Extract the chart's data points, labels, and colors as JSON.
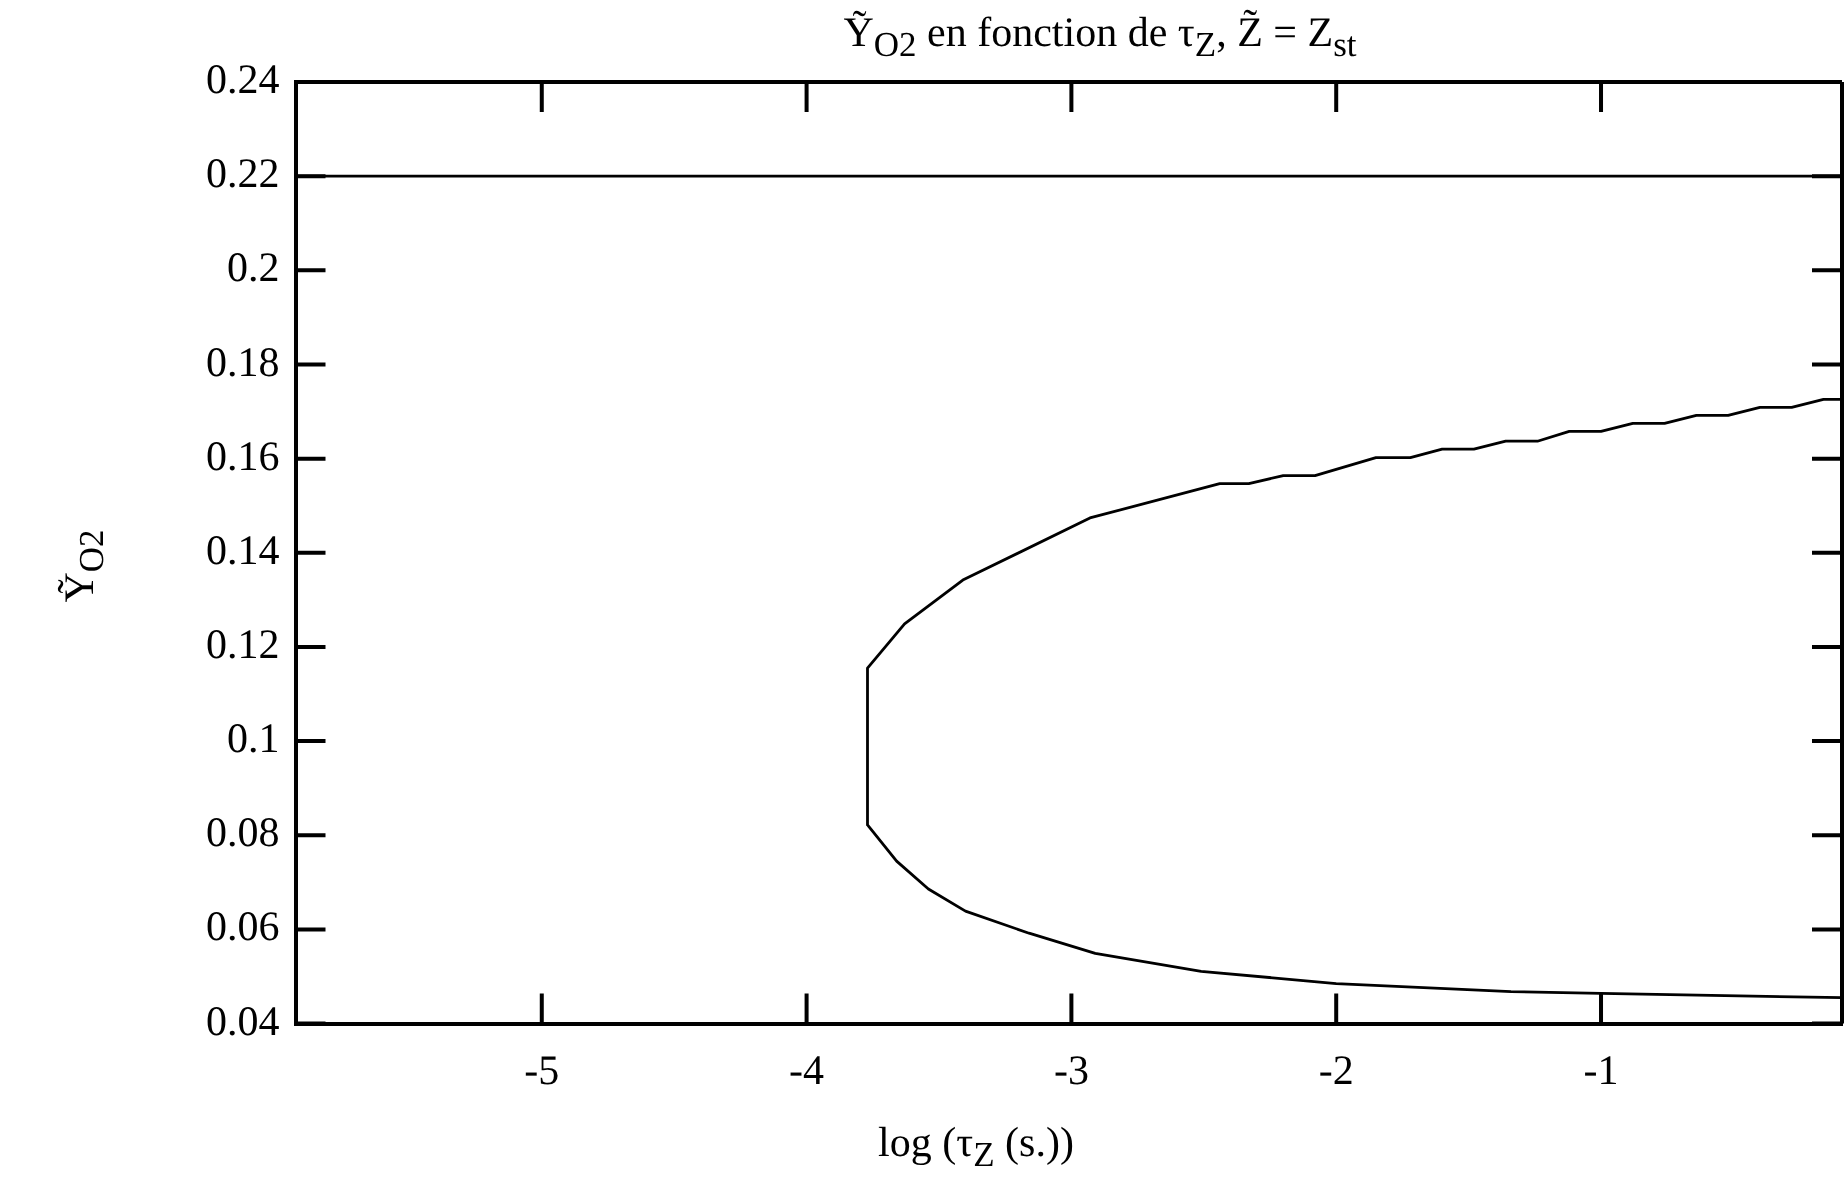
{
  "chart_data": {
    "type": "line",
    "title": "Ỹ$_{O2}$ en fonction de τ$_{Z}$, Z̃ = Z$_{st}$",
    "xlabel": "log (τ$_{Z}$ (s.))",
    "ylabel": "Ỹ$_{O2}$",
    "xlim": [
      -5.93,
      -0.09
    ],
    "ylim": [
      0.04,
      0.24
    ],
    "xticks": [
      -5,
      -4,
      -3,
      -2,
      -1
    ],
    "yticks": [
      0.04,
      0.06,
      0.08,
      0.1,
      0.12,
      0.14,
      0.16,
      0.18,
      0.2,
      0.22,
      0.24
    ],
    "legend": false,
    "series": [
      {
        "color": "#000000",
        "x": [
          -0.09,
          -0.16,
          -0.28,
          -0.4,
          -0.52,
          -0.64,
          -0.76,
          -0.88,
          -1.0,
          -1.12,
          -1.24,
          -1.36,
          -1.48,
          -1.6,
          -1.72,
          -1.85,
          -2.08,
          -2.2,
          -2.33,
          -2.44,
          -2.93,
          -3.41,
          -3.63,
          -3.77,
          -3.77,
          -3.66,
          -3.54,
          -3.4,
          -3.16,
          -2.91,
          -2.51,
          -2.0,
          -1.34,
          -1.0,
          -0.09
        ],
        "values": [
          0.1726,
          0.1726,
          0.1709,
          0.1709,
          0.1692,
          0.1692,
          0.1675,
          0.1675,
          0.1658,
          0.1658,
          0.1637,
          0.1637,
          0.162,
          0.162,
          0.1602,
          0.1602,
          0.1564,
          0.1564,
          0.1547,
          0.1547,
          0.1474,
          0.1342,
          0.1249,
          0.1155,
          0.0822,
          0.0745,
          0.0686,
          0.0639,
          0.0592,
          0.0549,
          0.0511,
          0.0485,
          0.0468,
          0.0464,
          0.0455
        ]
      },
      {
        "color": "#000000",
        "x": [
          -5.93,
          -0.09
        ],
        "values": [
          0.22,
          0.22
        ]
      }
    ]
  }
}
